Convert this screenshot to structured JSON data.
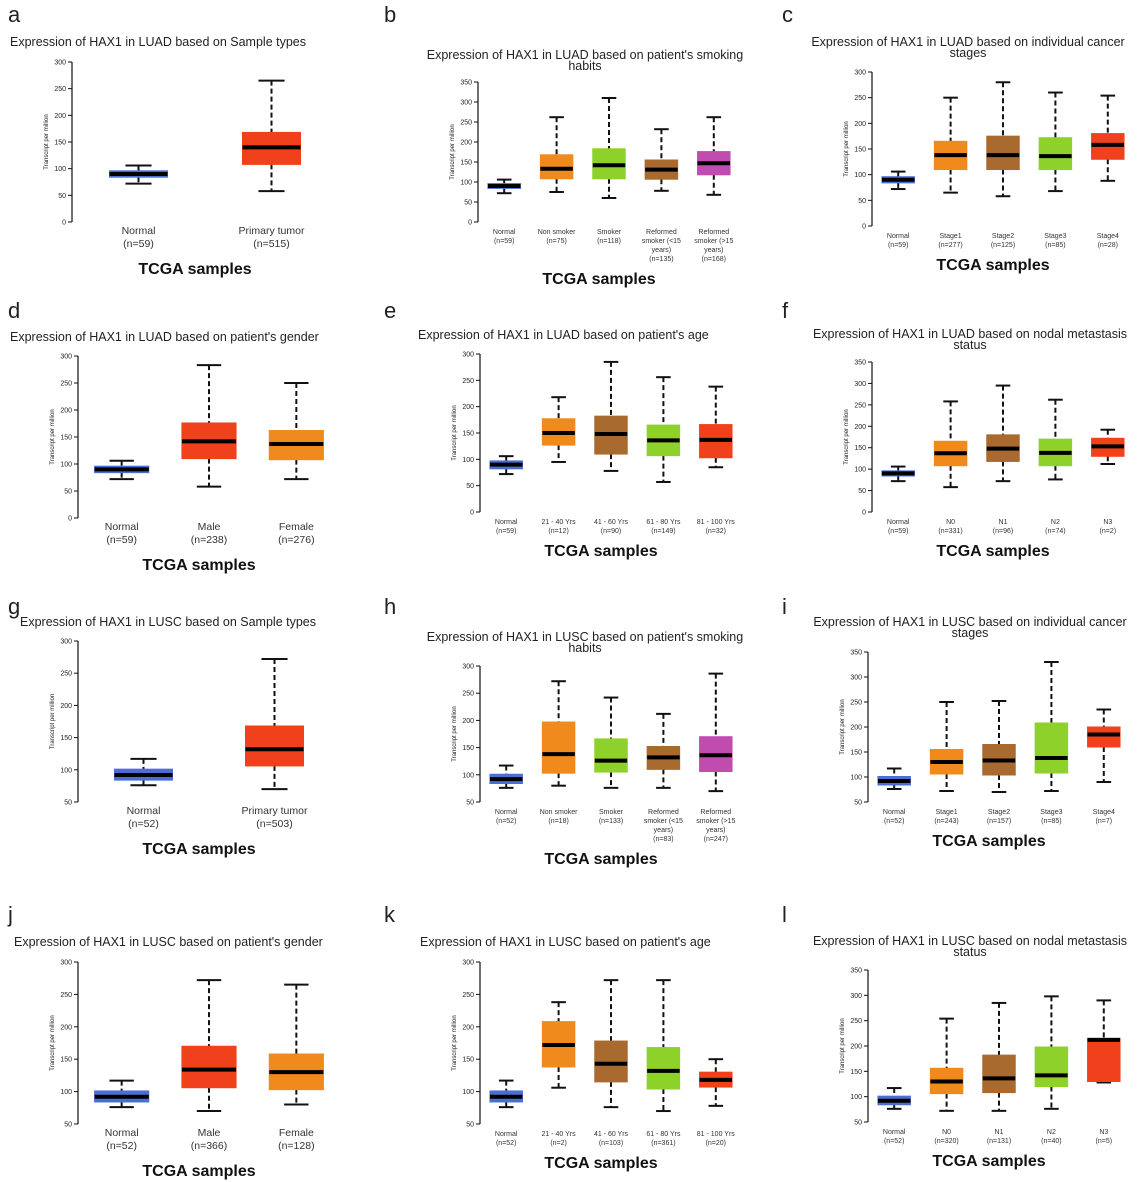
{
  "chart_data": [
    {
      "panel": "a",
      "type": "box",
      "title": "Expression of HAX1 in LUAD based on Sample types",
      "ylabel": "Transcript per million",
      "xlabel": "TCGA samples",
      "ylim": [
        0,
        300
      ],
      "yticks": [
        0,
        50,
        100,
        150,
        200,
        250,
        300
      ],
      "categories": [
        {
          "label": [
            "Normal",
            "(n=59)"
          ],
          "min": 72,
          "q1": 84,
          "median": 90,
          "q3": 96,
          "max": 106,
          "color": "#4a6fd4"
        },
        {
          "label": [
            "Primary tumor",
            "(n=515)"
          ],
          "min": 58,
          "q1": 108,
          "median": 140,
          "q3": 168,
          "max": 265,
          "color": "#f0401c"
        }
      ]
    },
    {
      "panel": "b",
      "type": "box",
      "title": "Expression of HAX1 in LUAD based on patient's smoking habits",
      "ylabel": "Transcript per million",
      "xlabel": "TCGA samples",
      "ylim": [
        0,
        350
      ],
      "yticks": [
        0,
        50,
        100,
        150,
        200,
        250,
        300,
        350
      ],
      "categories": [
        {
          "label": [
            "Normal",
            "(n=59)"
          ],
          "min": 72,
          "q1": 84,
          "median": 90,
          "q3": 96,
          "max": 106,
          "color": "#4a6fd4"
        },
        {
          "label": [
            "Non smoker",
            "(n=75)"
          ],
          "min": 75,
          "q1": 108,
          "median": 133,
          "q3": 168,
          "max": 262,
          "color": "#f08a1c"
        },
        {
          "label": [
            "Smoker",
            "(n=118)"
          ],
          "min": 60,
          "q1": 108,
          "median": 142,
          "q3": 183,
          "max": 310,
          "color": "#8ed12a"
        },
        {
          "label": [
            "Reformed",
            "smoker (<15",
            "years)",
            "(n=135)"
          ],
          "min": 78,
          "q1": 107,
          "median": 131,
          "q3": 155,
          "max": 232,
          "color": "#a86a2e"
        },
        {
          "label": [
            "Reformed",
            "smoker (>15",
            "years)",
            "(n=168)"
          ],
          "min": 68,
          "q1": 118,
          "median": 147,
          "q3": 176,
          "max": 262,
          "color": "#c04cb0"
        }
      ]
    },
    {
      "panel": "c",
      "type": "box",
      "title": "Expression of HAX1 in LUAD based on individual cancer stages",
      "ylabel": "Transcript per million",
      "xlabel": "TCGA samples",
      "ylim": [
        0,
        300
      ],
      "yticks": [
        0,
        50,
        100,
        150,
        200,
        250,
        300
      ],
      "categories": [
        {
          "label": [
            "Normal",
            "(n=59)"
          ],
          "min": 72,
          "q1": 84,
          "median": 90,
          "q3": 96,
          "max": 106,
          "color": "#4a6fd4"
        },
        {
          "label": [
            "Stage1",
            "(n=277)"
          ],
          "min": 65,
          "q1": 110,
          "median": 138,
          "q3": 165,
          "max": 250,
          "color": "#f08a1c"
        },
        {
          "label": [
            "Stage2",
            "(n=125)"
          ],
          "min": 58,
          "q1": 110,
          "median": 138,
          "q3": 175,
          "max": 280,
          "color": "#a86a2e"
        },
        {
          "label": [
            "Stage3",
            "(n=85)"
          ],
          "min": 68,
          "q1": 110,
          "median": 136,
          "q3": 172,
          "max": 260,
          "color": "#8ed12a"
        },
        {
          "label": [
            "Stage4",
            "(n=28)"
          ],
          "min": 88,
          "q1": 130,
          "median": 158,
          "q3": 180,
          "max": 254,
          "color": "#f0401c"
        }
      ]
    },
    {
      "panel": "d",
      "type": "box",
      "title": "Expression of HAX1 in LUAD based on patient's gender",
      "ylabel": "Transcript per million",
      "xlabel": "TCGA samples",
      "ylim": [
        0,
        300
      ],
      "yticks": [
        0,
        50,
        100,
        150,
        200,
        250,
        300
      ],
      "categories": [
        {
          "label": [
            "Normal",
            "(n=59)"
          ],
          "min": 72,
          "q1": 84,
          "median": 90,
          "q3": 96,
          "max": 106,
          "color": "#4a6fd4"
        },
        {
          "label": [
            "Male",
            "(n=238)"
          ],
          "min": 58,
          "q1": 110,
          "median": 142,
          "q3": 176,
          "max": 283,
          "color": "#f0401c"
        },
        {
          "label": [
            "Female",
            "(n=276)"
          ],
          "min": 72,
          "q1": 108,
          "median": 137,
          "q3": 162,
          "max": 250,
          "color": "#f08a1c"
        }
      ]
    },
    {
      "panel": "e",
      "type": "box",
      "title": "Expression of HAX1 in LUAD based on patient's age",
      "ylabel": "Transcript per million",
      "xlabel": "TCGA samples",
      "ylim": [
        0,
        300
      ],
      "yticks": [
        0,
        50,
        100,
        150,
        200,
        250,
        300
      ],
      "categories": [
        {
          "label": [
            "Normal",
            "(n=59)"
          ],
          "min": 72,
          "q1": 82,
          "median": 90,
          "q3": 97,
          "max": 106,
          "color": "#4a6fd4"
        },
        {
          "label": [
            "21 - 40 Yrs",
            "(n=12)"
          ],
          "min": 95,
          "q1": 127,
          "median": 150,
          "q3": 177,
          "max": 218,
          "color": "#f08a1c"
        },
        {
          "label": [
            "41 - 60 Yrs",
            "(n=90)"
          ],
          "min": 78,
          "q1": 110,
          "median": 148,
          "q3": 182,
          "max": 285,
          "color": "#a86a2e"
        },
        {
          "label": [
            "61 - 80 Yrs",
            "(n=149)"
          ],
          "min": 57,
          "q1": 107,
          "median": 136,
          "q3": 165,
          "max": 256,
          "color": "#8ed12a"
        },
        {
          "label": [
            "81 - 100 Yrs",
            "(n=32)"
          ],
          "min": 85,
          "q1": 103,
          "median": 137,
          "q3": 166,
          "max": 238,
          "color": "#f0401c"
        }
      ]
    },
    {
      "panel": "f",
      "type": "box",
      "title": "Expression of HAX1 in LUAD based on nodal metastasis status",
      "ylabel": "Transcript per million",
      "xlabel": "TCGA samples",
      "ylim": [
        0,
        350
      ],
      "yticks": [
        0,
        50,
        100,
        150,
        200,
        250,
        300,
        350
      ],
      "categories": [
        {
          "label": [
            "Normal",
            "(n=59)"
          ],
          "min": 72,
          "q1": 84,
          "median": 90,
          "q3": 96,
          "max": 106,
          "color": "#4a6fd4"
        },
        {
          "label": [
            "N0",
            "(n=331)"
          ],
          "min": 58,
          "q1": 108,
          "median": 137,
          "q3": 165,
          "max": 258,
          "color": "#f08a1c"
        },
        {
          "label": [
            "N1",
            "(n=96)"
          ],
          "min": 72,
          "q1": 118,
          "median": 148,
          "q3": 180,
          "max": 295,
          "color": "#a86a2e"
        },
        {
          "label": [
            "N2",
            "(n=74)"
          ],
          "min": 76,
          "q1": 108,
          "median": 138,
          "q3": 170,
          "max": 262,
          "color": "#8ed12a"
        },
        {
          "label": [
            "N3",
            "(n=2)"
          ],
          "min": 112,
          "q1": 130,
          "median": 153,
          "q3": 172,
          "max": 192,
          "color": "#f0401c"
        }
      ]
    },
    {
      "panel": "g",
      "type": "box",
      "title": "Expression of HAX1 in LUSC based on Sample types",
      "ylabel": "Transcript per million",
      "xlabel": "TCGA samples",
      "ylim": [
        50,
        300
      ],
      "yticks": [
        50,
        100,
        150,
        200,
        250,
        300
      ],
      "categories": [
        {
          "label": [
            "Normal",
            "(n=52)"
          ],
          "min": 76,
          "q1": 84,
          "median": 92,
          "q3": 101,
          "max": 117,
          "color": "#4a6fd4"
        },
        {
          "label": [
            "Primary tumor",
            "(n=503)"
          ],
          "min": 70,
          "q1": 106,
          "median": 132,
          "q3": 168,
          "max": 272,
          "color": "#f0401c"
        }
      ]
    },
    {
      "panel": "h",
      "type": "box",
      "title": "Expression of HAX1 in LUSC based on patient's smoking habits",
      "ylabel": "Transcript per million",
      "xlabel": "TCGA samples",
      "ylim": [
        50,
        300
      ],
      "yticks": [
        50,
        100,
        150,
        200,
        250,
        300
      ],
      "categories": [
        {
          "label": [
            "Normal",
            "(n=52)"
          ],
          "min": 76,
          "q1": 84,
          "median": 92,
          "q3": 101,
          "max": 117,
          "color": "#4a6fd4"
        },
        {
          "label": [
            "Non smoker",
            "(n=18)"
          ],
          "min": 80,
          "q1": 103,
          "median": 138,
          "q3": 197,
          "max": 272,
          "color": "#f08a1c"
        },
        {
          "label": [
            "Smoker",
            "(n=133)"
          ],
          "min": 76,
          "q1": 105,
          "median": 126,
          "q3": 166,
          "max": 242,
          "color": "#8ed12a"
        },
        {
          "label": [
            "Reformed",
            "smoker (<15",
            "years)",
            "(n=83)"
          ],
          "min": 76,
          "q1": 110,
          "median": 132,
          "q3": 152,
          "max": 212,
          "color": "#a86a2e"
        },
        {
          "label": [
            "Reformed",
            "smoker (>15",
            "years)",
            "(n=247)"
          ],
          "min": 70,
          "q1": 106,
          "median": 136,
          "q3": 170,
          "max": 286,
          "color": "#c04cb0"
        }
      ]
    },
    {
      "panel": "i",
      "type": "box",
      "title": "Expression of HAX1 in LUSC based on individual cancer stages",
      "ylabel": "Transcript per million",
      "xlabel": "TCGA samples",
      "ylim": [
        50,
        350
      ],
      "yticks": [
        50,
        100,
        150,
        200,
        250,
        300,
        350
      ],
      "categories": [
        {
          "label": [
            "Normal",
            "(n=52)"
          ],
          "min": 76,
          "q1": 84,
          "median": 92,
          "q3": 101,
          "max": 117,
          "color": "#4a6fd4"
        },
        {
          "label": [
            "Stage1",
            "(n=243)"
          ],
          "min": 72,
          "q1": 106,
          "median": 130,
          "q3": 155,
          "max": 250,
          "color": "#f08a1c"
        },
        {
          "label": [
            "Stage2",
            "(n=157)"
          ],
          "min": 70,
          "q1": 104,
          "median": 133,
          "q3": 165,
          "max": 252,
          "color": "#a86a2e"
        },
        {
          "label": [
            "Stage3",
            "(n=85)"
          ],
          "min": 72,
          "q1": 108,
          "median": 138,
          "q3": 208,
          "max": 330,
          "color": "#8ed12a"
        },
        {
          "label": [
            "Stage4",
            "(n=7)"
          ],
          "min": 90,
          "q1": 160,
          "median": 185,
          "q3": 200,
          "max": 235,
          "color": "#f0401c"
        }
      ]
    },
    {
      "panel": "j",
      "type": "box",
      "title": "Expression of HAX1 in LUSC based on patient's gender",
      "ylabel": "Transcript per million",
      "xlabel": "TCGA samples",
      "ylim": [
        50,
        300
      ],
      "yticks": [
        50,
        100,
        150,
        200,
        250,
        300
      ],
      "categories": [
        {
          "label": [
            "Normal",
            "(n=52)"
          ],
          "min": 76,
          "q1": 84,
          "median": 92,
          "q3": 101,
          "max": 117,
          "color": "#4a6fd4"
        },
        {
          "label": [
            "Male",
            "(n=366)"
          ],
          "min": 70,
          "q1": 106,
          "median": 134,
          "q3": 170,
          "max": 272,
          "color": "#f0401c"
        },
        {
          "label": [
            "Female",
            "(n=128)"
          ],
          "min": 80,
          "q1": 103,
          "median": 130,
          "q3": 158,
          "max": 265,
          "color": "#f08a1c"
        }
      ]
    },
    {
      "panel": "k",
      "type": "box",
      "title": "Expression of HAX1 in LUSC based on patient's age",
      "ylabel": "Transcript per million",
      "xlabel": "TCGA samples",
      "ylim": [
        50,
        300
      ],
      "yticks": [
        50,
        100,
        150,
        200,
        250,
        300
      ],
      "categories": [
        {
          "label": [
            "Normal",
            "(n=52)"
          ],
          "min": 76,
          "q1": 84,
          "median": 92,
          "q3": 101,
          "max": 117,
          "color": "#4a6fd4"
        },
        {
          "label": [
            "21 - 40 Yrs",
            "(n=2)"
          ],
          "min": 106,
          "q1": 138,
          "median": 172,
          "q3": 208,
          "max": 238,
          "color": "#f08a1c"
        },
        {
          "label": [
            "41 - 60 Yrs",
            "(n=103)"
          ],
          "min": 76,
          "q1": 115,
          "median": 143,
          "q3": 178,
          "max": 272,
          "color": "#a86a2e"
        },
        {
          "label": [
            "61 - 80 Yrs",
            "(n=361)"
          ],
          "min": 70,
          "q1": 104,
          "median": 132,
          "q3": 168,
          "max": 272,
          "color": "#8ed12a"
        },
        {
          "label": [
            "81 - 100 Yrs",
            "(n=20)"
          ],
          "min": 78,
          "q1": 107,
          "median": 118,
          "q3": 130,
          "max": 150,
          "color": "#f0401c"
        }
      ]
    },
    {
      "panel": "l",
      "type": "box",
      "title": "Expression of HAX1 in LUSC based on nodal metastasis status",
      "ylabel": "Transcript per million",
      "xlabel": "TCGA samples",
      "ylim": [
        50,
        350
      ],
      "yticks": [
        50,
        100,
        150,
        200,
        250,
        300,
        350
      ],
      "categories": [
        {
          "label": [
            "Normal",
            "(n=52)"
          ],
          "min": 76,
          "q1": 84,
          "median": 92,
          "q3": 101,
          "max": 117,
          "color": "#4a6fd4"
        },
        {
          "label": [
            "N0",
            "(n=320)"
          ],
          "min": 72,
          "q1": 106,
          "median": 130,
          "q3": 156,
          "max": 254,
          "color": "#f08a1c"
        },
        {
          "label": [
            "N1",
            "(n=131)"
          ],
          "min": 72,
          "q1": 108,
          "median": 136,
          "q3": 182,
          "max": 285,
          "color": "#a86a2e"
        },
        {
          "label": [
            "N2",
            "(n=40)"
          ],
          "min": 76,
          "q1": 120,
          "median": 142,
          "q3": 198,
          "max": 298,
          "color": "#8ed12a"
        },
        {
          "label": [
            "N3",
            "(n=5)"
          ],
          "min": 128,
          "q1": 130,
          "median": 212,
          "q3": 215,
          "max": 290,
          "color": "#f0401c"
        }
      ]
    }
  ]
}
